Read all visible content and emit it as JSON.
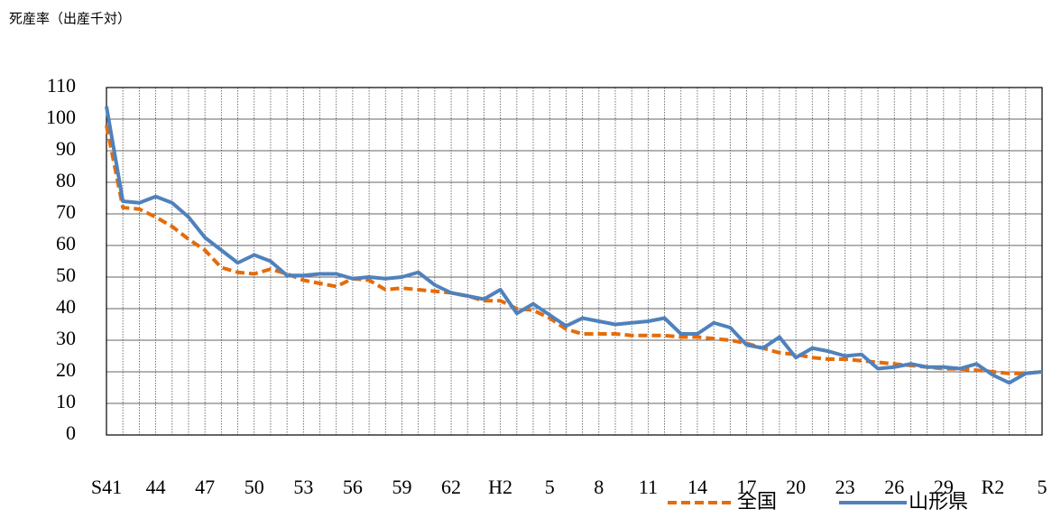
{
  "chart_data": {
    "type": "line",
    "title": "死産率（出産千対）",
    "categories": [
      "S41",
      null,
      null,
      "44",
      null,
      null,
      "47",
      null,
      null,
      "50",
      null,
      null,
      "53",
      null,
      null,
      "56",
      null,
      null,
      "59",
      null,
      null,
      "62",
      null,
      null,
      "H2",
      null,
      null,
      "5",
      null,
      null,
      "8",
      null,
      null,
      "11",
      null,
      null,
      "14",
      null,
      null,
      "17",
      null,
      null,
      "20",
      null,
      null,
      "23",
      null,
      null,
      "26",
      null,
      null,
      "29",
      null,
      null,
      "R2",
      null,
      null,
      "5"
    ],
    "series": [
      {
        "name": "全国",
        "color": "#e46c0a",
        "dash": true,
        "values": [
          98,
          72,
          71.5,
          69,
          66,
          62,
          58.5,
          53,
          51.5,
          51,
          52.5,
          51,
          49,
          48,
          47,
          49.5,
          49,
          46,
          46.5,
          46,
          45.5,
          45,
          44,
          42.5,
          42.5,
          40,
          39.5,
          37,
          33.5,
          32,
          32,
          32,
          31.5,
          31.5,
          31.5,
          31,
          31,
          30.5,
          30,
          29,
          27.5,
          26,
          25.5,
          24.5,
          24,
          24,
          23.5,
          23,
          22.5,
          22,
          21.5,
          21,
          20.9,
          20.5,
          20,
          19.5,
          19.5,
          20
        ]
      },
      {
        "name": "山形県",
        "color": "#4f81bd",
        "dash": false,
        "values": [
          104,
          74,
          73.5,
          75.5,
          73.5,
          69,
          62.5,
          58.5,
          54.5,
          57,
          55,
          50.5,
          50.5,
          51,
          51,
          49.5,
          50,
          49.5,
          50,
          51.5,
          47.5,
          45,
          44,
          43,
          46,
          38.5,
          41.5,
          38,
          34.5,
          37,
          36,
          35,
          35.5,
          36,
          37,
          32,
          32,
          35.5,
          34,
          28.5,
          27.5,
          31,
          24.5,
          27.5,
          26.5,
          25,
          25.5,
          21,
          21.5,
          22.5,
          21.5,
          21.5,
          21,
          22.5,
          19,
          16.5,
          19.5,
          20
        ]
      }
    ],
    "ylim": [
      0,
      110
    ],
    "yticks": [
      0,
      10,
      20,
      30,
      40,
      50,
      60,
      70,
      80,
      90,
      100,
      110
    ],
    "grid": true
  }
}
